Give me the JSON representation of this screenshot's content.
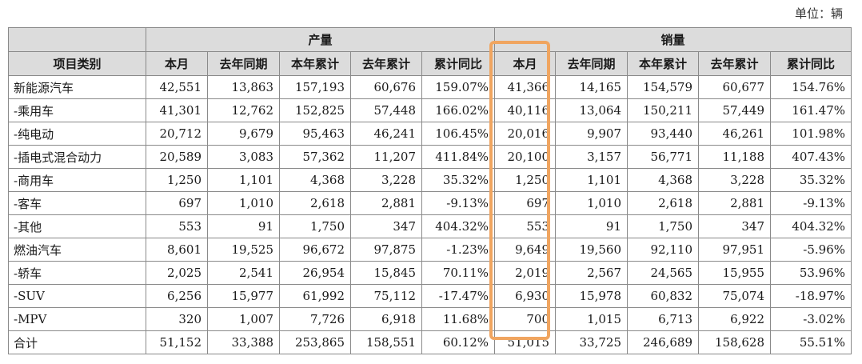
{
  "unit_label": "单位：辆",
  "header": {
    "category": "项目类别",
    "production_group": "产量",
    "sales_group": "销量",
    "columns": [
      "本月",
      "去年同期",
      "本年累计",
      "去年累计",
      "累计同比"
    ]
  },
  "rows": [
    {
      "label": "新能源汽车",
      "level": 0,
      "cells": [
        "42,551",
        "13,863",
        "157,193",
        "60,676",
        "159.07%",
        "41,366",
        "14,165",
        "154,579",
        "60,677",
        "154.76%"
      ]
    },
    {
      "label": "-乘用车",
      "level": 1,
      "cells": [
        "41,301",
        "12,762",
        "152,825",
        "57,448",
        "166.02%",
        "40,116",
        "13,064",
        "150,211",
        "57,449",
        "161.47%"
      ]
    },
    {
      "label": "-纯电动",
      "level": 2,
      "cells": [
        "20,712",
        "9,679",
        "95,463",
        "46,241",
        "106.45%",
        "20,016",
        "9,907",
        "93,440",
        "46,261",
        "101.98%"
      ]
    },
    {
      "label": "-插电式混合动力",
      "level": 2,
      "cells": [
        "20,589",
        "3,083",
        "57,362",
        "11,207",
        "411.84%",
        "20,100",
        "3,157",
        "56,771",
        "11,188",
        "407.43%"
      ]
    },
    {
      "label": "-商用车",
      "level": 1,
      "cells": [
        "1,250",
        "1,101",
        "4,368",
        "3,228",
        "35.32%",
        "1,250",
        "1,101",
        "4,368",
        "3,228",
        "35.32%"
      ]
    },
    {
      "label": "-客车",
      "level": 2,
      "cells": [
        "697",
        "1,010",
        "2,618",
        "2,881",
        "-9.13%",
        "697",
        "1,010",
        "2,618",
        "2,881",
        "-9.13%"
      ]
    },
    {
      "label": "-其他",
      "level": 2,
      "cells": [
        "553",
        "91",
        "1,750",
        "347",
        "404.32%",
        "553",
        "91",
        "1,750",
        "347",
        "404.32%"
      ]
    },
    {
      "label": "燃油汽车",
      "level": 0,
      "cells": [
        "8,601",
        "19,525",
        "96,672",
        "97,875",
        "-1.23%",
        "9,649",
        "19,560",
        "92,110",
        "97,951",
        "-5.96%"
      ]
    },
    {
      "label": "-轿车",
      "level": 1,
      "cells": [
        "2,025",
        "2,541",
        "26,954",
        "15,845",
        "70.11%",
        "2,019",
        "2,567",
        "24,565",
        "15,955",
        "53.96%"
      ]
    },
    {
      "label": "-SUV",
      "level": 1,
      "cells": [
        "6,256",
        "15,977",
        "61,992",
        "75,112",
        "-17.47%",
        "6,930",
        "15,978",
        "60,832",
        "75,074",
        "-18.97%"
      ]
    },
    {
      "label": "-MPV",
      "level": 1,
      "cells": [
        "320",
        "1,007",
        "7,726",
        "6,918",
        "11.68%",
        "700",
        "1,015",
        "6,713",
        "6,922",
        "-3.02%"
      ]
    },
    {
      "label": "合计",
      "level": 0,
      "cells": [
        "51,152",
        "33,388",
        "253,865",
        "158,551",
        "60.12%",
        "51,015",
        "33,725",
        "246,689",
        "158,628",
        "55.51%"
      ]
    }
  ],
  "highlight_color": "#f0a560"
}
